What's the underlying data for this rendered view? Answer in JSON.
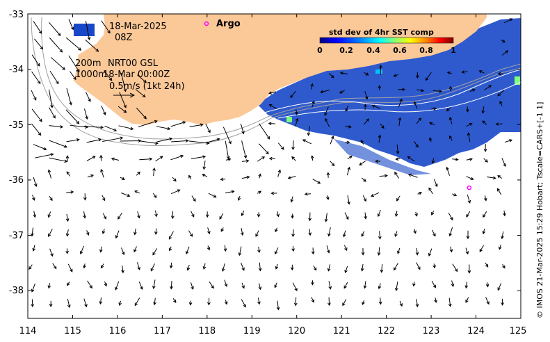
{
  "map": {
    "lon_range": [
      114,
      125
    ],
    "lat_range": [
      -38.5,
      -33
    ],
    "lon_ticks": [
      "114",
      "115",
      "116",
      "117",
      "118",
      "119",
      "120",
      "121",
      "122",
      "123",
      "124",
      "125"
    ],
    "lat_ticks": [
      "-33",
      "-34",
      "-35",
      "-36",
      "-37",
      "-38"
    ],
    "land_color": "#fbc898",
    "sea_color": "#ffffff"
  },
  "info": {
    "date": "18-Mar-2025",
    "time": "08Z",
    "depth_200": "200m",
    "depth_1000": "1000m",
    "product": "NRT00 GSL",
    "product_date": "18-Mar 00:00Z",
    "scale_text": "0.5m/s (1kt 24h)"
  },
  "argo": {
    "label": "Argo",
    "color": "#ff00ff",
    "float_lon": 123.85,
    "float_lat": -36.14
  },
  "colorbar": {
    "title": "std dev of 4hr SST comp",
    "ticks": [
      "0",
      "0.2",
      "0.4",
      "0.6",
      "0.8",
      "1"
    ],
    "colors": [
      "#00007f",
      "#0000ff",
      "#007fff",
      "#00ffff",
      "#7fff7f",
      "#ffff00",
      "#ff7f00",
      "#ff0000",
      "#7f0000"
    ]
  },
  "credit": "© IMOS 21-Mar-2025 15:29 Hobart; Tscale=CARS+[-1 1]"
}
